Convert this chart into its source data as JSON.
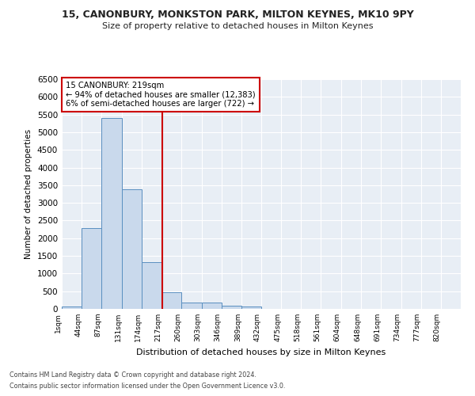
{
  "title1": "15, CANONBURY, MONKSTON PARK, MILTON KEYNES, MK10 9PY",
  "title2": "Size of property relative to detached houses in Milton Keynes",
  "xlabel": "Distribution of detached houses by size in Milton Keynes",
  "ylabel": "Number of detached properties",
  "annotation_title": "15 CANONBURY: 219sqm",
  "annotation_line1": "← 94% of detached houses are smaller (12,383)",
  "annotation_line2": "6% of semi-detached houses are larger (722) →",
  "footer1": "Contains HM Land Registry data © Crown copyright and database right 2024.",
  "footer2": "Contains public sector information licensed under the Open Government Licence v3.0.",
  "property_size": 219,
  "bin_edges": [
    1,
    44,
    87,
    131,
    174,
    217,
    260,
    303,
    346,
    389,
    432,
    475,
    518,
    561,
    604,
    648,
    691,
    734,
    777,
    820,
    863
  ],
  "bar_values": [
    70,
    2280,
    5400,
    3380,
    1330,
    480,
    185,
    180,
    80,
    60,
    0,
    0,
    0,
    0,
    0,
    0,
    0,
    0,
    0,
    0
  ],
  "bar_color": "#c9d9ec",
  "bar_edge_color": "#5a8fc0",
  "vline_color": "#cc0000",
  "background_color": "#e8eef5",
  "grid_color": "#ffffff",
  "ylim": [
    0,
    6500
  ],
  "yticks": [
    0,
    500,
    1000,
    1500,
    2000,
    2500,
    3000,
    3500,
    4000,
    4500,
    5000,
    5500,
    6000,
    6500
  ]
}
